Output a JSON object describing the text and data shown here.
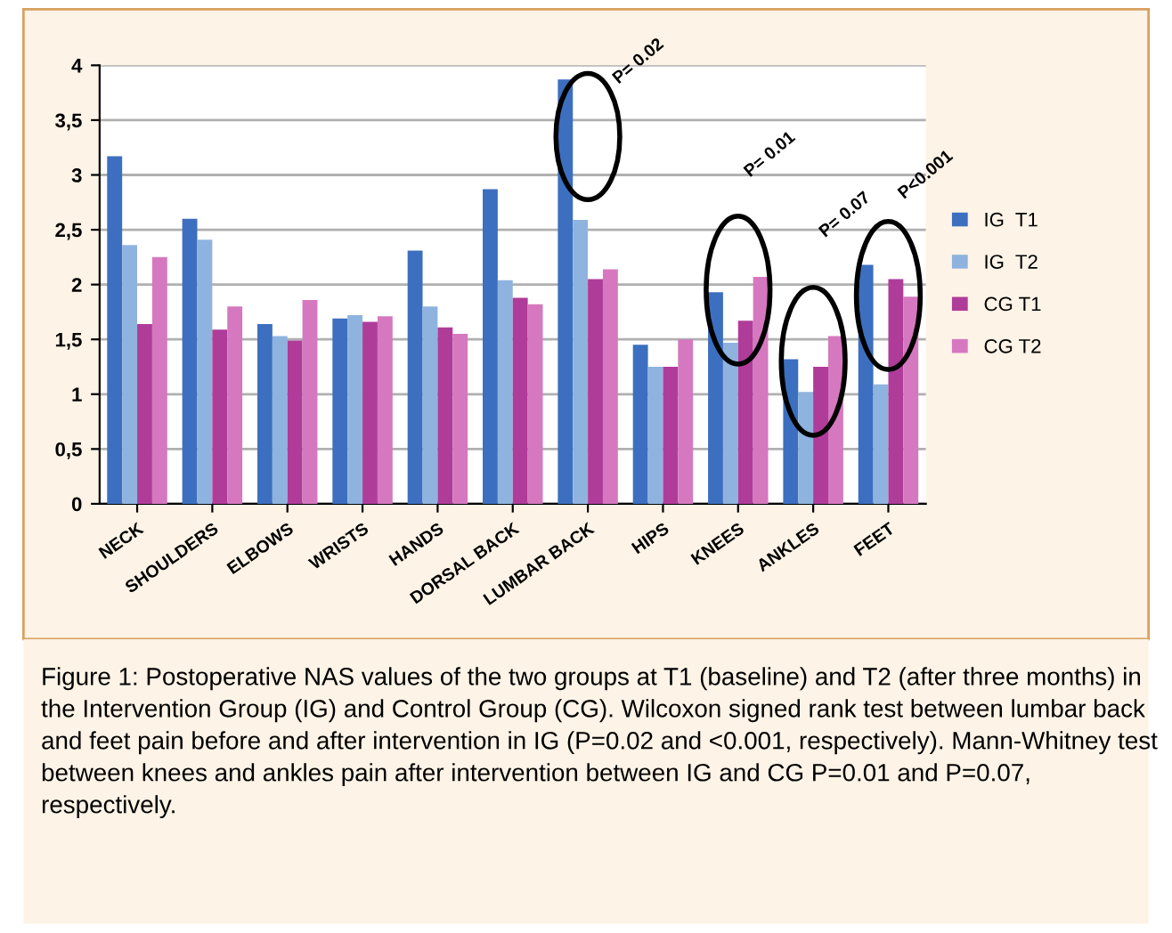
{
  "chart_data": {
    "type": "bar",
    "categories": [
      "NECK",
      "SHOULDERS",
      "ELBOWS",
      "WRISTS",
      "HANDS",
      "DORSAL BACK",
      "LUMBAR BACK",
      "HIPS",
      "KNEES",
      "ANKLES",
      "FEET"
    ],
    "series": [
      {
        "name": "IG  T1",
        "color": "#3c6fbf",
        "values": [
          3.17,
          2.6,
          1.64,
          1.69,
          2.31,
          2.87,
          3.87,
          1.45,
          1.93,
          1.32,
          2.18
        ]
      },
      {
        "name": "IG  T2",
        "color": "#8fb3df",
        "values": [
          2.36,
          2.41,
          1.53,
          1.72,
          1.8,
          2.04,
          2.59,
          1.25,
          1.47,
          1.02,
          1.09
        ]
      },
      {
        "name": "CG T1",
        "color": "#b03c9a",
        "values": [
          1.64,
          1.59,
          1.49,
          1.66,
          1.61,
          1.88,
          2.05,
          1.25,
          1.67,
          1.25,
          2.05
        ]
      },
      {
        "name": "CG T2",
        "color": "#d678bf",
        "values": [
          2.25,
          1.8,
          1.86,
          1.71,
          1.55,
          1.82,
          2.14,
          1.5,
          2.07,
          1.53,
          1.89
        ]
      }
    ],
    "ylim": [
      0,
      4
    ],
    "yticks": [
      0,
      {
        "value": 0.5,
        "label": "0,5"
      },
      1,
      {
        "value": 1.5,
        "label": "1,5"
      },
      2,
      {
        "value": 2.5,
        "label": "2,5"
      },
      3,
      {
        "value": 3.5,
        "label": "3,5"
      },
      4
    ],
    "grid": "y",
    "legend": "right",
    "annotations": [
      "P= 0.02",
      "P= 0.01",
      "P= 0.07",
      "P<0.001",
      "Figure 1: Postoperative NAS values of the two groups at T1 (baseline) and T2 (after three months) in the Intervention Group (IG) and Control Group (CG). Wilcoxon signed rank test between lumbar back and feet pain before and after intervention in IG (P=0.02 and <0.001, respectively). Mann-Whitney test between knees and ankles pain after intervention between IG and CG P=0.01 and P=0.07, respectively."
    ]
  }
}
